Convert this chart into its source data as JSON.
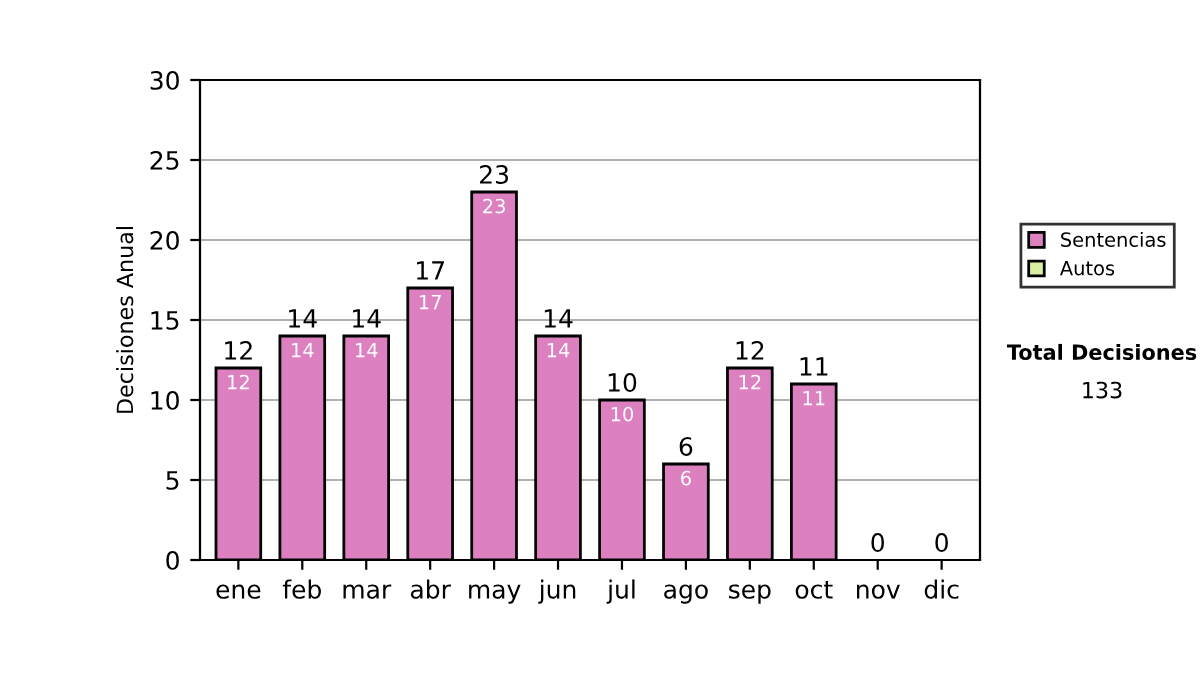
{
  "chart_data": {
    "type": "bar",
    "stacked": true,
    "ylabel": "Decisiones Anual",
    "categories": [
      "ene",
      "feb",
      "mar",
      "abr",
      "may",
      "jun",
      "jul",
      "ago",
      "sep",
      "oct",
      "nov",
      "dic"
    ],
    "series": [
      {
        "name": "Sentencias",
        "color": "#dd80c0",
        "values": [
          12,
          14,
          14,
          17,
          23,
          14,
          10,
          6,
          12,
          11,
          0,
          0
        ],
        "value_labels": [
          "12",
          "14",
          "14",
          "17",
          "23",
          "14",
          "10",
          "6",
          "12",
          "11",
          null,
          null
        ]
      },
      {
        "name": "Autos",
        "color": "#d9f0a3",
        "values": [
          0,
          0,
          0,
          0,
          0,
          0,
          0,
          0,
          0,
          0,
          0,
          0
        ]
      }
    ],
    "totals": [
      "12",
      "14",
      "14",
      "17",
      "23",
      "14",
      "10",
      "6",
      "12",
      "11",
      "0",
      "0"
    ],
    "ylim": [
      0,
      30
    ],
    "yticks": [
      0,
      5,
      10,
      15,
      20,
      25,
      30
    ],
    "grid": "y",
    "legend": "right",
    "annotations": [
      "Total Decisiones",
      "133"
    ]
  }
}
